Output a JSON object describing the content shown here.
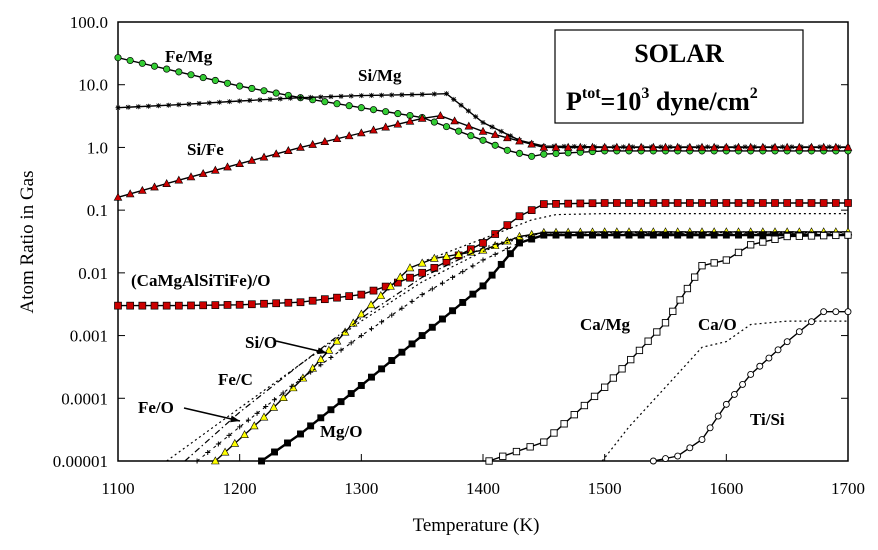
{
  "chart_data": {
    "type": "line",
    "title": "",
    "xlabel": "Temperature (K)",
    "ylabel": "Atom Ratio in Gas",
    "xlim": [
      1100,
      1700
    ],
    "ylim": [
      1e-05,
      100
    ],
    "yscale": "log",
    "x_ticks": [
      "1100",
      "1200",
      "1300",
      "1400",
      "1500",
      "1600",
      "1700"
    ],
    "y_ticks": [
      "100.0",
      "10.0",
      "1.0",
      "0.1",
      "0.01",
      "0.001",
      "0.0001",
      "0.00001"
    ],
    "annotation_box": {
      "line1": "SOLAR",
      "p": "P",
      "p_sup": "tot",
      "eq": "=10",
      "exp": "3",
      "units": " dyne/cm",
      "units_sup": "2"
    },
    "labels": {
      "fe_mg": "Fe/Mg",
      "si_mg": "Si/Mg",
      "si_fe": "Si/Fe",
      "camg": "(CaMgAlSiTiFe)/O",
      "si_o": "Si/O",
      "fe_c": "Fe/C",
      "fe_o": "Fe/O",
      "mg_o": "Mg/O",
      "ca_mg": "Ca/Mg",
      "ca_o": "Ca/O",
      "ti_si": "Ti/Si"
    },
    "series": [
      {
        "key": "fe_mg",
        "color": "#33cc33",
        "style": "circle",
        "x": [
          1100,
          1150,
          1200,
          1250,
          1300,
          1350,
          1400,
          1420,
          1440,
          1450,
          1500,
          1550,
          1600,
          1650,
          1700
        ],
        "y": [
          27,
          16,
          9.5,
          6.2,
          4.3,
          3.0,
          1.3,
          0.9,
          0.72,
          0.78,
          0.88,
          0.88,
          0.88,
          0.88,
          0.88
        ]
      },
      {
        "key": "si_mg",
        "color": "#000000",
        "style": "star",
        "x": [
          1100,
          1150,
          1200,
          1250,
          1300,
          1350,
          1370,
          1400,
          1430,
          1450,
          1500,
          1600,
          1700
        ],
        "y": [
          4.3,
          4.8,
          5.5,
          6.2,
          6.7,
          7.0,
          7.2,
          2.5,
          1.3,
          1.05,
          1.02,
          1.02,
          1.02
        ]
      },
      {
        "key": "si_fe",
        "color": "#cc0000",
        "style": "triangle",
        "x": [
          1100,
          1150,
          1200,
          1250,
          1300,
          1350,
          1365,
          1400,
          1450,
          1500,
          1600,
          1700
        ],
        "y": [
          0.16,
          0.3,
          0.55,
          1.0,
          1.7,
          2.9,
          3.2,
          1.8,
          1.0,
          1.0,
          1.0,
          1.0
        ]
      },
      {
        "key": "camg",
        "color": "#cc0000",
        "style": "square",
        "x": [
          1100,
          1150,
          1200,
          1250,
          1300,
          1330,
          1360,
          1400,
          1430,
          1450,
          1500,
          1600,
          1700
        ],
        "y": [
          0.003,
          0.003,
          0.0031,
          0.0034,
          0.0045,
          0.007,
          0.012,
          0.03,
          0.08,
          0.125,
          0.13,
          0.13,
          0.13
        ]
      },
      {
        "key": "tot_o_dotted",
        "color": "#000000",
        "style": "dotted",
        "x": [
          1350,
          1400,
          1440,
          1460,
          1500,
          1600,
          1700
        ],
        "y": [
          0.015,
          0.035,
          0.07,
          0.085,
          0.088,
          0.088,
          0.088
        ]
      },
      {
        "key": "si_o",
        "color": "#ffff00",
        "style": "triangle",
        "x": [
          1180,
          1220,
          1260,
          1300,
          1340,
          1360,
          1400,
          1430,
          1450,
          1500,
          1600,
          1700
        ],
        "y": [
          1e-05,
          5e-05,
          0.0003,
          0.0022,
          0.012,
          0.017,
          0.023,
          0.038,
          0.044,
          0.045,
          0.045,
          0.045
        ]
      },
      {
        "key": "fe_c",
        "color": "#000000",
        "style": "dashdot",
        "x": [
          1155,
          1200,
          1250,
          1300,
          1350,
          1400,
          1430,
          1450,
          1500,
          1600,
          1700
        ],
        "y": [
          1e-05,
          6e-05,
          0.00035,
          0.0019,
          0.0085,
          0.025,
          0.038,
          0.044,
          0.045,
          0.045,
          0.045
        ]
      },
      {
        "key": "fe_o",
        "color": "#000000",
        "style": "dotted",
        "x": [
          1140,
          1200,
          1250,
          1300,
          1350,
          1400,
          1430,
          1450,
          1500,
          1600,
          1700
        ],
        "y": [
          1e-05,
          7e-05,
          0.00035,
          0.0017,
          0.0072,
          0.022,
          0.036,
          0.043,
          0.044,
          0.044,
          0.044
        ]
      },
      {
        "key": "fe_o_plus",
        "color": "#000000",
        "style": "plus",
        "x": [
          1165,
          1200,
          1250,
          1300,
          1350,
          1400,
          1430,
          1450,
          1500,
          1600,
          1700
        ],
        "y": [
          1e-05,
          3.5e-05,
          0.0002,
          0.001,
          0.0045,
          0.016,
          0.03,
          0.041,
          0.042,
          0.042,
          0.042
        ]
      },
      {
        "key": "mg_o",
        "color": "#000000",
        "style": "filled-square",
        "x": [
          1218,
          1250,
          1300,
          1350,
          1400,
          1430,
          1450,
          1500,
          1600,
          1700
        ],
        "y": [
          1e-05,
          2.7e-05,
          0.00016,
          0.001,
          0.0062,
          0.03,
          0.04,
          0.04,
          0.04,
          0.04
        ]
      },
      {
        "key": "ca_mg",
        "color": "#000000",
        "style": "open-square",
        "x": [
          1405,
          1450,
          1500,
          1550,
          1580,
          1600,
          1620,
          1650,
          1700
        ],
        "y": [
          1e-05,
          2e-05,
          0.00015,
          0.0016,
          0.013,
          0.016,
          0.028,
          0.038,
          0.04
        ]
      },
      {
        "key": "ca_o",
        "color": "#000000",
        "style": "dotted",
        "x": [
          1498,
          1520,
          1550,
          1580,
          1600,
          1620,
          1650,
          1700
        ],
        "y": [
          1e-05,
          3.5e-05,
          0.00015,
          0.00065,
          0.0008,
          0.0015,
          0.0017,
          0.0017
        ]
      },
      {
        "key": "ti_si",
        "color": "#000000",
        "style": "open-circle",
        "x": [
          1540,
          1560,
          1580,
          1600,
          1620,
          1650,
          1680,
          1700
        ],
        "y": [
          1e-05,
          1.2e-05,
          2.2e-05,
          8e-05,
          0.00024,
          0.0008,
          0.0024,
          0.0024
        ]
      }
    ]
  }
}
